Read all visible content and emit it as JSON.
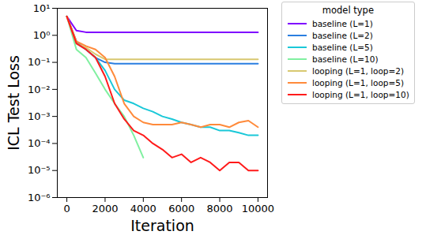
{
  "chart_data": {
    "type": "line",
    "x_label": "Iteration",
    "y_label": "ICL Test Loss",
    "legend_title": "model type",
    "legend": "right",
    "log": "y",
    "x": [
      0,
      500,
      1000,
      1500,
      2000,
      2500,
      3000,
      3500,
      4000,
      4500,
      5000,
      5500,
      6000,
      6500,
      7000,
      7500,
      8000,
      8500,
      9000,
      9500,
      10000
    ],
    "xlim": [
      -500,
      10500
    ],
    "xticks": [
      0,
      2000,
      4000,
      6000,
      8000,
      10000
    ],
    "ylim": [
      1e-06,
      10
    ],
    "yticks": [
      {
        "value": 1e-06,
        "label": "10⁻⁶"
      },
      {
        "value": 1e-05,
        "label": "10⁻⁵"
      },
      {
        "value": 0.0001,
        "label": "10⁻⁴"
      },
      {
        "value": 0.001,
        "label": "10⁻³"
      },
      {
        "value": 0.01,
        "label": "10⁻²"
      },
      {
        "value": 0.1,
        "label": "10⁻¹"
      },
      {
        "value": 1,
        "label": "10⁰"
      },
      {
        "value": 10,
        "label": "10¹"
      }
    ],
    "series": [
      {
        "name": "baseline (L=1)",
        "color": "#7f00ff",
        "values": [
          5,
          1.5,
          1.3,
          1.3,
          1.3,
          1.3,
          1.3,
          1.3,
          1.3,
          1.3,
          1.3,
          1.3,
          1.3,
          1.3,
          1.3,
          1.3,
          1.3,
          1.3,
          1.3,
          1.3,
          1.3
        ]
      },
      {
        "name": "baseline (L=2)",
        "color": "#2a7ee0",
        "values": [
          5,
          0.6,
          0.3,
          0.15,
          0.1,
          0.09,
          0.09,
          0.09,
          0.09,
          0.09,
          0.09,
          0.09,
          0.09,
          0.09,
          0.09,
          0.09,
          0.09,
          0.09,
          0.09,
          0.09,
          0.09
        ]
      },
      {
        "name": "baseline (L=5)",
        "color": "#1ac8d8",
        "values": [
          5,
          0.5,
          0.3,
          0.15,
          0.05,
          0.01,
          0.004,
          0.003,
          0.002,
          0.0015,
          0.001,
          0.0008,
          0.0006,
          0.0005,
          0.0004,
          0.0004,
          0.0003,
          0.0003,
          0.00025,
          0.0002,
          0.0002
        ]
      },
      {
        "name": "baseline (L=10)",
        "color": "#80f0a0",
        "values": [
          5,
          0.3,
          0.15,
          0.04,
          0.01,
          0.003,
          0.001,
          0.0002,
          3e-05,
          null,
          null,
          null,
          null,
          null,
          null,
          null,
          null,
          null,
          null,
          null,
          null
        ]
      },
      {
        "name": "looping (L=1, loop=2)",
        "color": "#d8c870",
        "values": [
          5,
          0.5,
          0.35,
          0.2,
          0.13,
          0.13,
          0.13,
          0.13,
          0.13,
          0.13,
          0.13,
          0.13,
          0.13,
          0.13,
          0.13,
          0.13,
          0.13,
          0.13,
          0.13,
          0.13,
          0.13
        ]
      },
      {
        "name": "looping (L=1, loop=5)",
        "color": "#ff8a3a",
        "values": [
          5,
          0.6,
          0.4,
          0.3,
          0.15,
          0.03,
          0.003,
          0.001,
          0.0006,
          0.0005,
          0.0005,
          0.0005,
          0.0006,
          0.0005,
          0.0004,
          0.0005,
          0.0005,
          0.0004,
          0.0006,
          0.0007,
          0.0004
        ]
      },
      {
        "name": "looping (L=1, loop=10)",
        "color": "#ff1a1a",
        "values": [
          5,
          0.5,
          0.3,
          0.15,
          0.03,
          0.003,
          0.0008,
          0.0003,
          0.0002,
          0.0001,
          6e-05,
          3e-05,
          4e-05,
          2e-05,
          3e-05,
          2e-05,
          1e-05,
          2e-05,
          2e-05,
          1e-05,
          1e-05
        ]
      }
    ]
  }
}
